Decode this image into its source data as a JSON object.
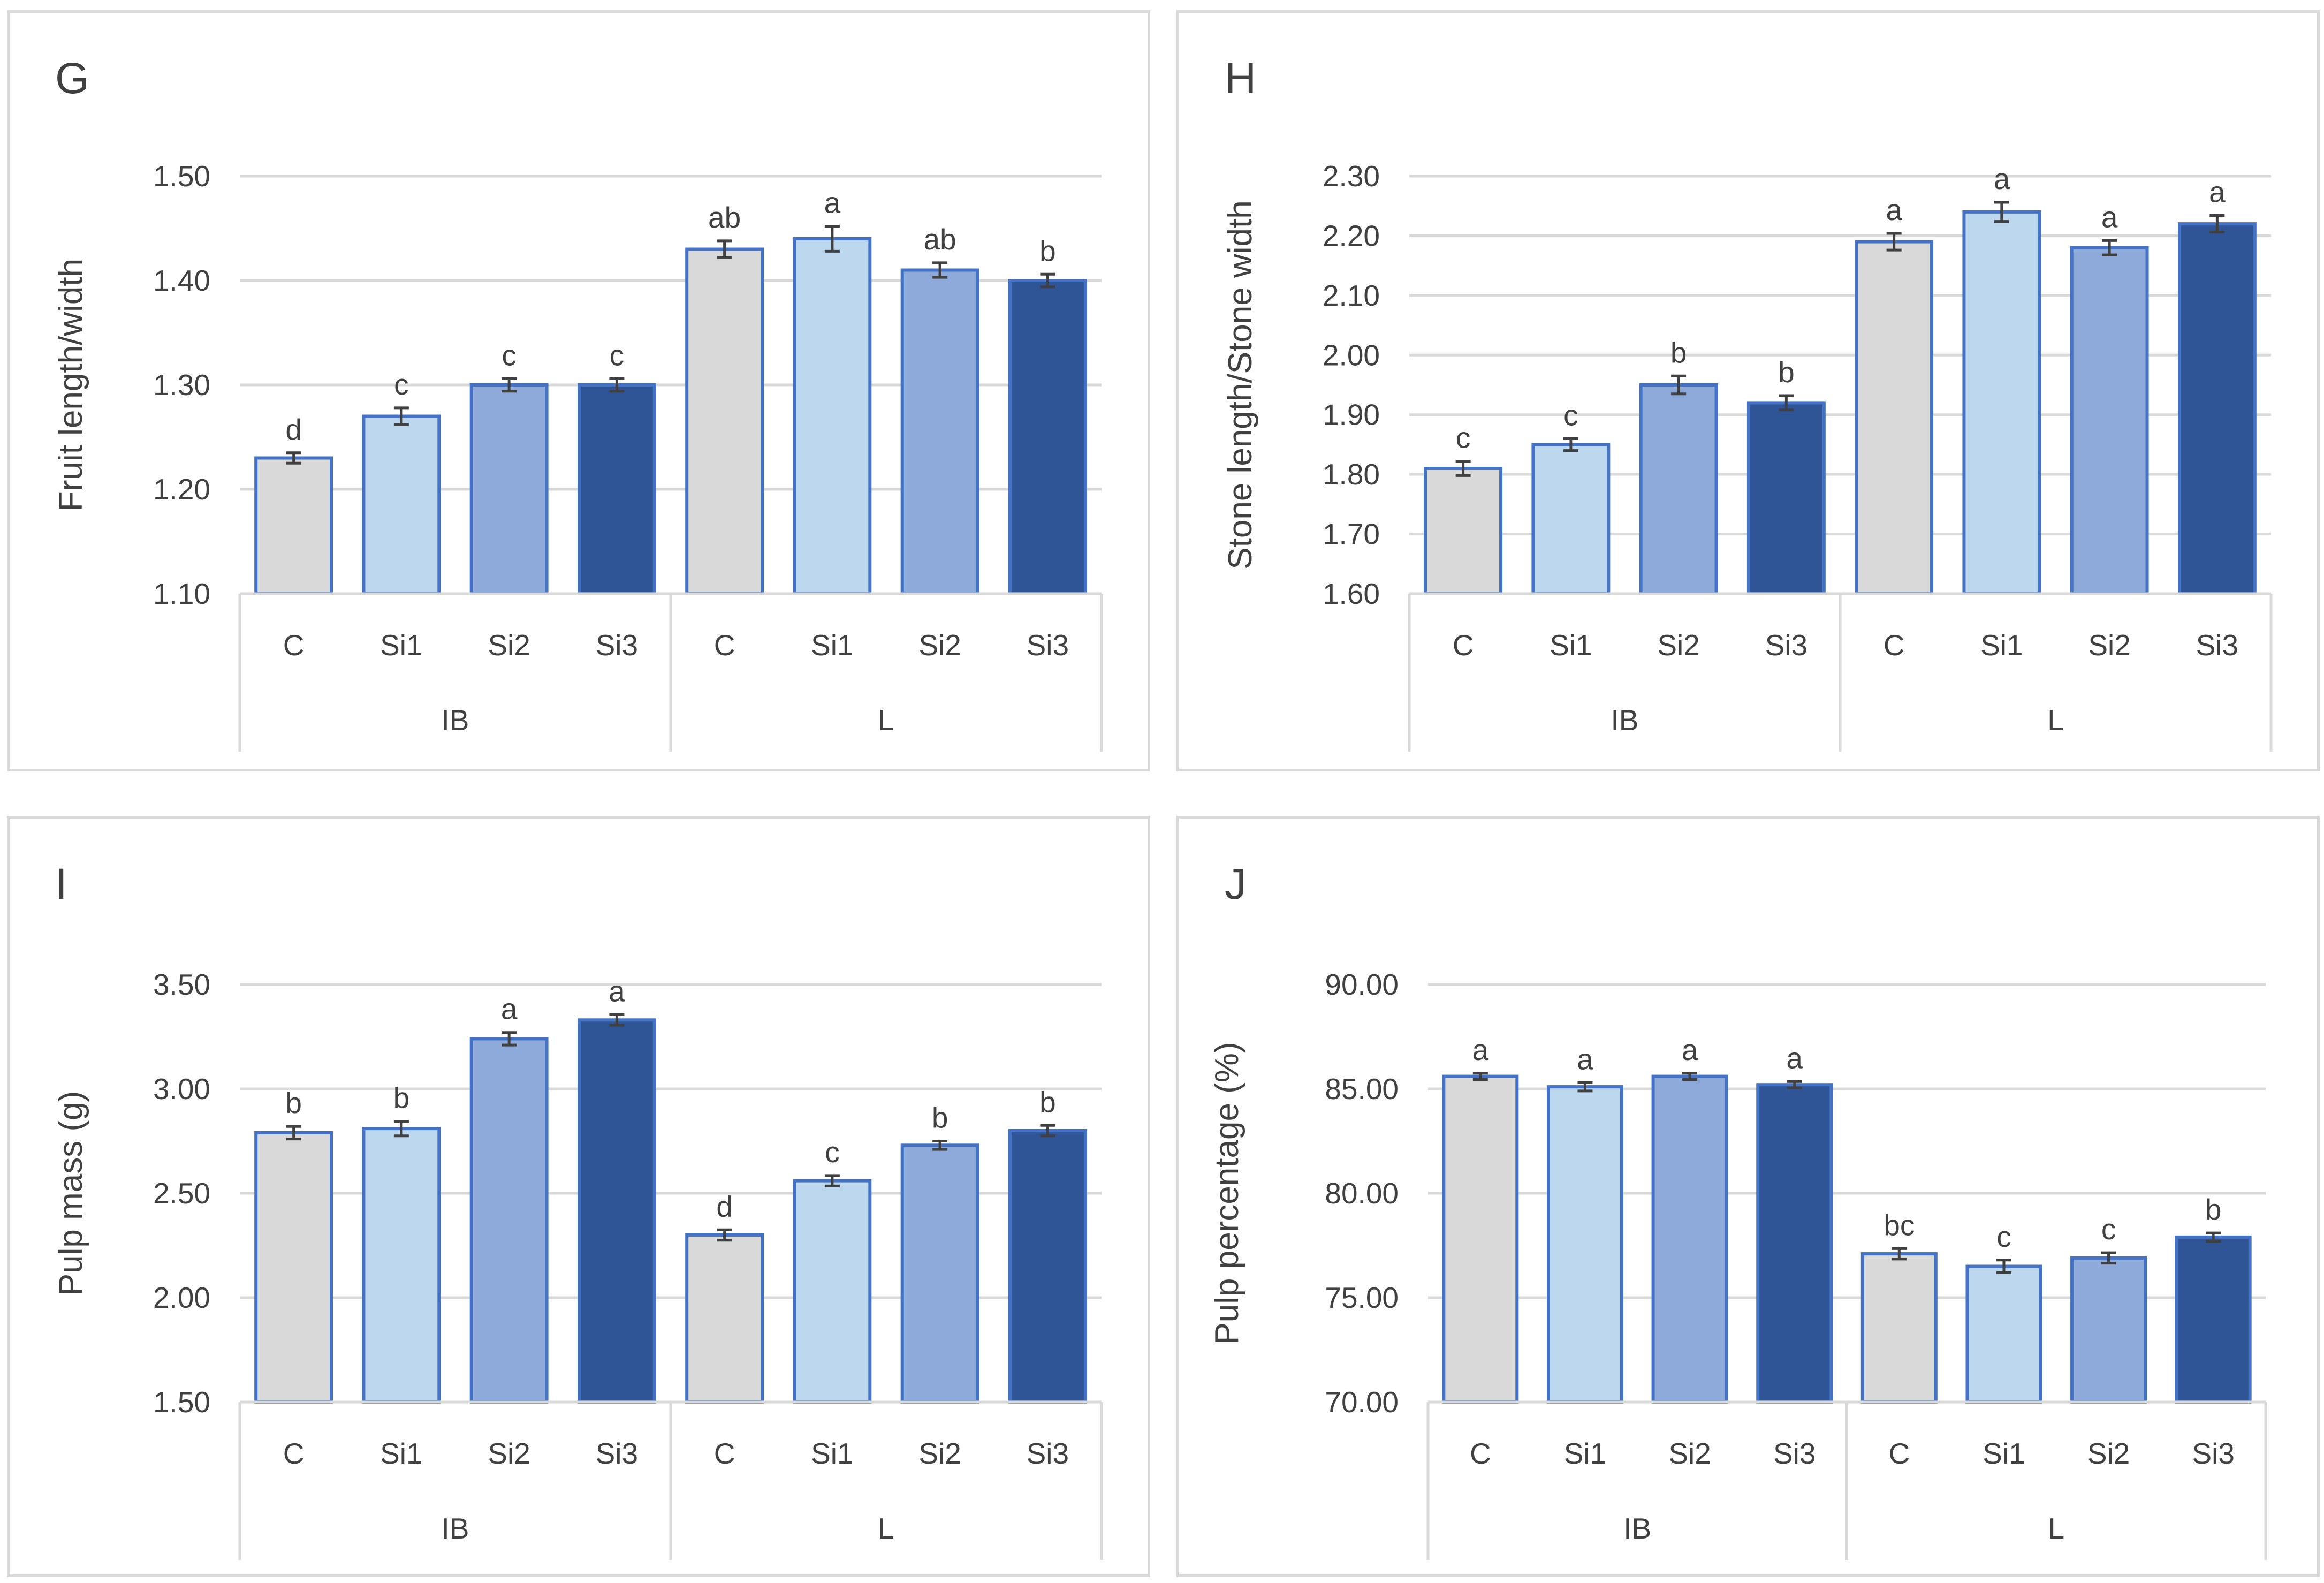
{
  "colors": {
    "C": "#d9d9d9",
    "Si1": "#bdd7ee",
    "Si2": "#8eaadb",
    "Si3": "#2f5597",
    "bar_border": "#4472c4",
    "error_bar": "#404040",
    "gridline": "#d9d9d9",
    "text": "#404040",
    "panel_border": "#d9d9d9"
  },
  "chart_data": [
    {
      "type": "bar",
      "panel_label": "G",
      "ylabel": "Fruit length/width",
      "ylim": [
        1.1,
        1.5
      ],
      "yticks": [
        "1.10",
        "1.20",
        "1.30",
        "1.40",
        "1.50"
      ],
      "groups": [
        "IB",
        "L"
      ],
      "categories": [
        "C",
        "Si1",
        "Si2",
        "Si3",
        "C",
        "Si1",
        "Si2",
        "Si3"
      ],
      "values": [
        1.23,
        1.27,
        1.3,
        1.3,
        1.43,
        1.44,
        1.41,
        1.4
      ],
      "errors": [
        0.005,
        0.008,
        0.006,
        0.006,
        0.008,
        0.012,
        0.007,
        0.006
      ],
      "letters": [
        "d",
        "c",
        "c",
        "c",
        "ab",
        "a",
        "ab",
        "b"
      ],
      "grid": true
    },
    {
      "type": "bar",
      "panel_label": "H",
      "ylabel": "Stone length/Stone width",
      "ylim": [
        1.6,
        2.3
      ],
      "yticks": [
        "1.60",
        "1.70",
        "1.80",
        "1.90",
        "2.00",
        "2.10",
        "2.20",
        "2.30"
      ],
      "groups": [
        "IB",
        "L"
      ],
      "categories": [
        "C",
        "Si1",
        "Si2",
        "Si3",
        "C",
        "Si1",
        "Si2",
        "Si3"
      ],
      "values": [
        1.81,
        1.85,
        1.95,
        1.92,
        2.19,
        2.24,
        2.18,
        2.22
      ],
      "errors": [
        0.012,
        0.01,
        0.015,
        0.012,
        0.014,
        0.016,
        0.012,
        0.014
      ],
      "letters": [
        "c",
        "c",
        "b",
        "b",
        "a",
        "a",
        "a",
        "a"
      ],
      "grid": true
    },
    {
      "type": "bar",
      "panel_label": "I",
      "ylabel": "Pulp mass (g)",
      "ylim": [
        1.5,
        3.5
      ],
      "yticks": [
        "1.50",
        "2.00",
        "2.50",
        "3.00",
        "3.50"
      ],
      "groups": [
        "IB",
        "L"
      ],
      "categories": [
        "C",
        "Si1",
        "Si2",
        "Si3",
        "C",
        "Si1",
        "Si2",
        "Si3"
      ],
      "values": [
        2.79,
        2.81,
        3.24,
        3.33,
        2.3,
        2.56,
        2.73,
        2.8
      ],
      "errors": [
        0.03,
        0.035,
        0.03,
        0.025,
        0.025,
        0.025,
        0.02,
        0.025
      ],
      "letters": [
        "b",
        "b",
        "a",
        "a",
        "d",
        "c",
        "b",
        "b"
      ],
      "grid": true
    },
    {
      "type": "bar",
      "panel_label": "J",
      "ylabel": "Pulp percentage (%)",
      "ylim": [
        70.0,
        90.0
      ],
      "yticks": [
        "70.00",
        "75.00",
        "80.00",
        "85.00",
        "90.00"
      ],
      "groups": [
        "IB",
        "L"
      ],
      "categories": [
        "C",
        "Si1",
        "Si2",
        "Si3",
        "C",
        "Si1",
        "Si2",
        "Si3"
      ],
      "values": [
        85.6,
        85.1,
        85.6,
        85.2,
        77.1,
        76.5,
        76.9,
        77.9
      ],
      "errors": [
        0.15,
        0.2,
        0.15,
        0.15,
        0.25,
        0.3,
        0.25,
        0.2
      ],
      "letters": [
        "a",
        "a",
        "a",
        "a",
        "bc",
        "c",
        "c",
        "b"
      ],
      "grid": true
    }
  ]
}
